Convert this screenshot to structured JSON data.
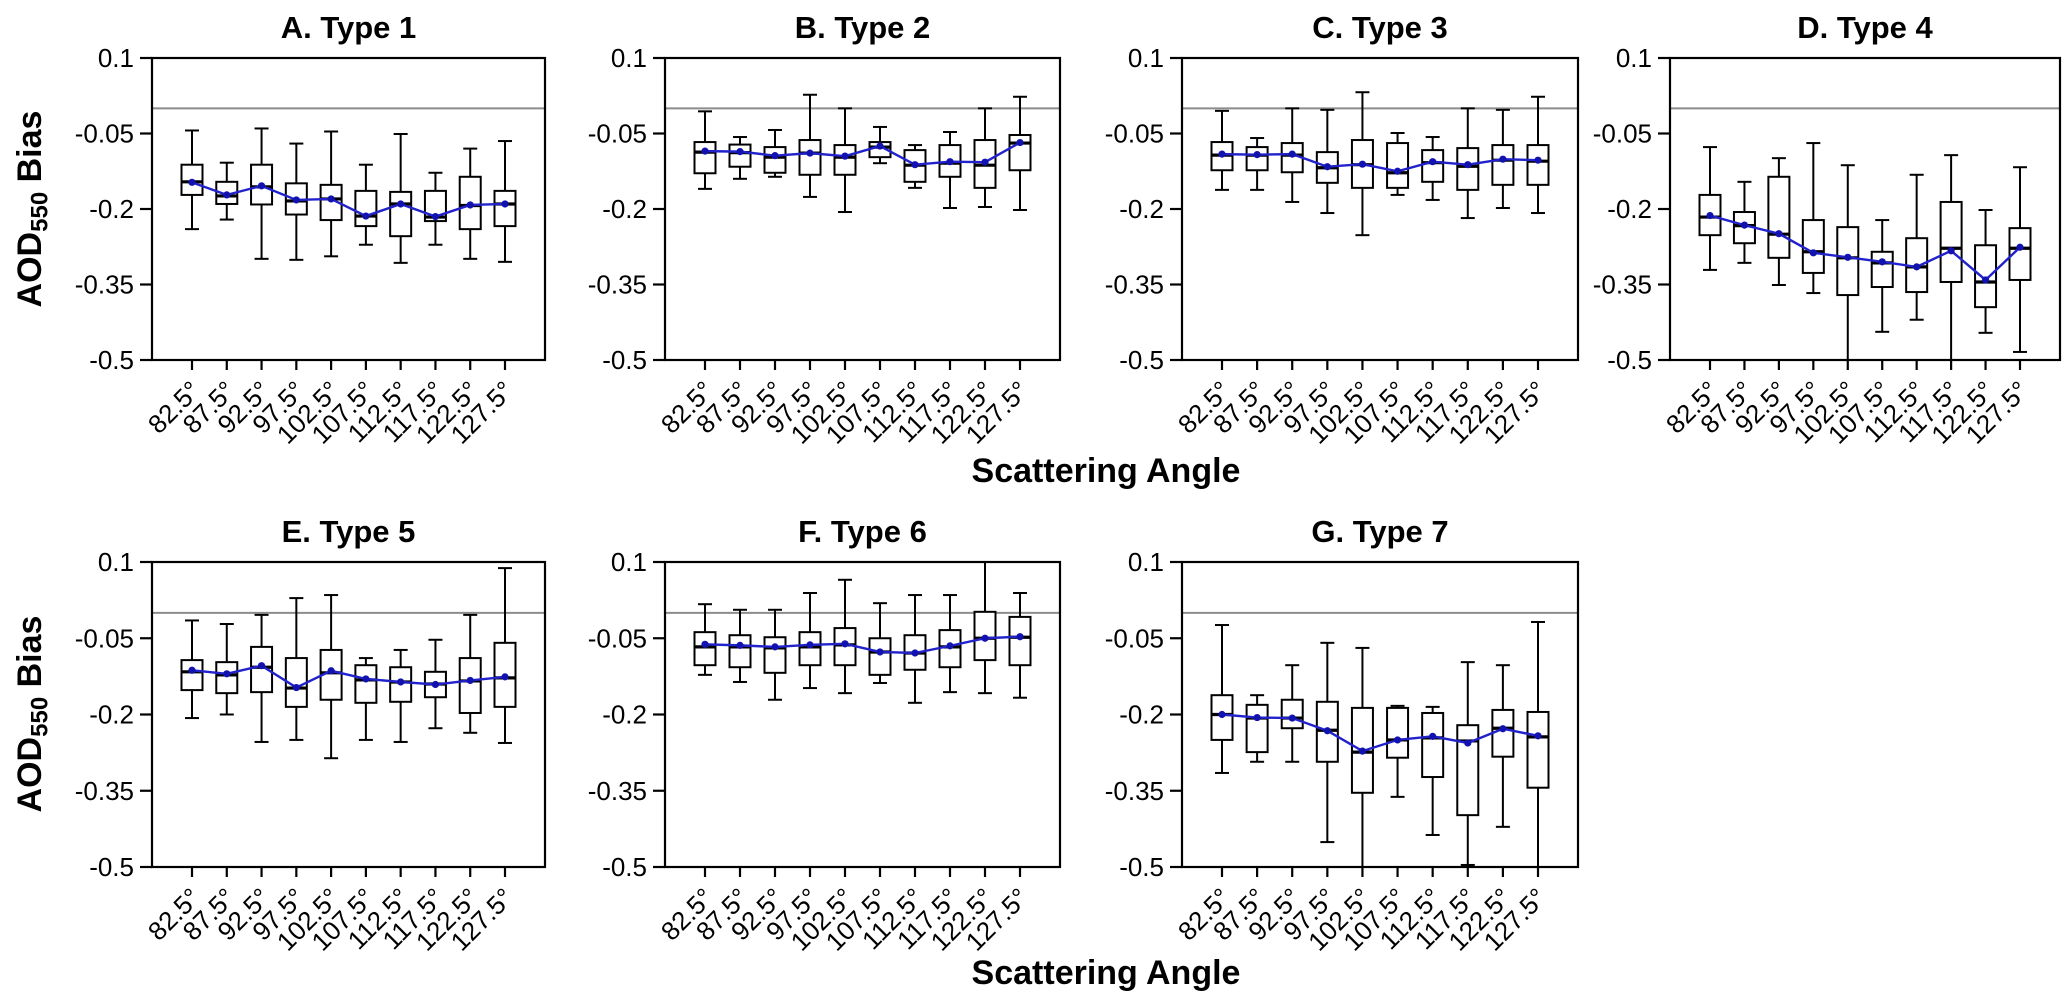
{
  "figure": {
    "xlabel": "Scattering Angle",
    "ylabel_prefix": "AOD",
    "ylabel_sub": "550",
    "ylabel_suffix": " Bias",
    "colors": {
      "mean_line": "#2222cc",
      "mean_dot": "#1212b0",
      "ref_line": "#8c8c8c",
      "box_stroke": "#000000",
      "background": "#ffffff"
    }
  },
  "chart_data": [
    {
      "id": "A",
      "title": "A. Type 1",
      "row": 0,
      "col": 0,
      "type": "box",
      "xlabel": "Scattering Angle",
      "ylabel": "AOD550 Bias",
      "categories": [
        "82.5°",
        "87.5°",
        "92.5°",
        "97.5°",
        "102.5°",
        "107.5°",
        "112.5°",
        "117.5°",
        "122.5°",
        "127.5°"
      ],
      "ylim": [
        -0.5,
        0.1
      ],
      "yticks": [
        0.1,
        -0.05,
        -0.2,
        -0.35,
        -0.5
      ],
      "ytick_labels": [
        "0.1",
        "-0.05",
        "-0.2",
        "-0.35",
        "-0.5"
      ],
      "ref_line": 0,
      "box_format": "[whisker_low, q1, median, q3, whisker_high]",
      "boxes": [
        [
          -0.24,
          -0.172,
          -0.146,
          -0.112,
          -0.044
        ],
        [
          -0.221,
          -0.19,
          -0.174,
          -0.146,
          -0.108
        ],
        [
          -0.299,
          -0.191,
          -0.156,
          -0.112,
          -0.04
        ],
        [
          -0.301,
          -0.211,
          -0.184,
          -0.149,
          -0.07
        ],
        [
          -0.294,
          -0.222,
          -0.18,
          -0.152,
          -0.046
        ],
        [
          -0.271,
          -0.234,
          -0.214,
          -0.164,
          -0.112
        ],
        [
          -0.307,
          -0.254,
          -0.19,
          -0.166,
          -0.051
        ],
        [
          -0.271,
          -0.224,
          -0.216,
          -0.164,
          -0.128
        ],
        [
          -0.299,
          -0.24,
          -0.193,
          -0.136,
          -0.08
        ],
        [
          -0.305,
          -0.234,
          -0.19,
          -0.164,
          -0.065
        ]
      ],
      "means": [
        -0.147,
        -0.172,
        -0.154,
        -0.182,
        -0.18,
        -0.214,
        -0.19,
        -0.215,
        -0.192,
        -0.19
      ]
    },
    {
      "id": "B",
      "title": "B. Type 2",
      "row": 0,
      "col": 1,
      "type": "box",
      "xlabel": "Scattering Angle",
      "ylabel": "AOD550 Bias",
      "categories": [
        "82.5°",
        "87.5°",
        "92.5°",
        "97.5°",
        "102.5°",
        "107.5°",
        "112.5°",
        "117.5°",
        "122.5°",
        "127.5°"
      ],
      "ylim": [
        -0.5,
        0.1
      ],
      "yticks": [
        0.1,
        -0.05,
        -0.2,
        -0.35,
        -0.5
      ],
      "ytick_labels": [
        "0.1",
        "-0.05",
        "-0.2",
        "-0.35",
        "-0.5"
      ],
      "ref_line": 0,
      "box_format": "[whisker_low, q1, median, q3, whisker_high]",
      "boxes": [
        [
          -0.16,
          -0.129,
          -0.087,
          -0.067,
          -0.006
        ],
        [
          -0.14,
          -0.116,
          -0.088,
          -0.072,
          -0.057
        ],
        [
          -0.136,
          -0.128,
          -0.097,
          -0.077,
          -0.043
        ],
        [
          -0.176,
          -0.132,
          -0.089,
          -0.063,
          0.027
        ],
        [
          -0.206,
          -0.132,
          -0.097,
          -0.073,
          0.0
        ],
        [
          -0.109,
          -0.097,
          -0.077,
          -0.067,
          -0.037
        ],
        [
          -0.158,
          -0.146,
          -0.113,
          -0.083,
          -0.073
        ],
        [
          -0.198,
          -0.136,
          -0.109,
          -0.073,
          -0.047
        ],
        [
          -0.196,
          -0.158,
          -0.113,
          -0.063,
          0.0
        ],
        [
          -0.202,
          -0.123,
          -0.069,
          -0.053,
          0.023
        ]
      ],
      "means": [
        -0.085,
        -0.086,
        -0.094,
        -0.089,
        -0.095,
        -0.075,
        -0.112,
        -0.106,
        -0.107,
        -0.068
      ]
    },
    {
      "id": "C",
      "title": "C. Type 3",
      "row": 0,
      "col": 2,
      "type": "box",
      "xlabel": "Scattering Angle",
      "ylabel": "AOD550 Bias",
      "categories": [
        "82.5°",
        "87.5°",
        "92.5°",
        "97.5°",
        "102.5°",
        "107.5°",
        "112.5°",
        "117.5°",
        "122.5°",
        "127.5°"
      ],
      "ylim": [
        -0.5,
        0.1
      ],
      "yticks": [
        0.1,
        -0.05,
        -0.2,
        -0.35,
        -0.5
      ],
      "ytick_labels": [
        "0.1",
        "-0.05",
        "-0.2",
        "-0.35",
        "-0.5"
      ],
      "ref_line": 0,
      "box_format": "[whisker_low, q1, median, q3, whisker_high]",
      "boxes": [
        [
          -0.162,
          -0.123,
          -0.093,
          -0.067,
          -0.005
        ],
        [
          -0.162,
          -0.123,
          -0.093,
          -0.077,
          -0.059
        ],
        [
          -0.186,
          -0.127,
          -0.093,
          -0.069,
          0.0
        ],
        [
          -0.208,
          -0.148,
          -0.118,
          -0.087,
          -0.003
        ],
        [
          -0.252,
          -0.158,
          -0.112,
          -0.063,
          0.032
        ],
        [
          -0.172,
          -0.158,
          -0.128,
          -0.069,
          -0.049
        ],
        [
          -0.182,
          -0.146,
          -0.108,
          -0.083,
          -0.057
        ],
        [
          -0.218,
          -0.162,
          -0.115,
          -0.079,
          0.0
        ],
        [
          -0.198,
          -0.152,
          -0.103,
          -0.073,
          -0.003
        ],
        [
          -0.208,
          -0.152,
          -0.105,
          -0.073,
          0.023
        ]
      ],
      "means": [
        -0.091,
        -0.092,
        -0.091,
        -0.116,
        -0.111,
        -0.125,
        -0.106,
        -0.112,
        -0.101,
        -0.103
      ]
    },
    {
      "id": "D",
      "title": "D. Type 4",
      "row": 0,
      "col": 3,
      "type": "box",
      "xlabel": "Scattering Angle",
      "ylabel": "AOD550 Bias",
      "categories": [
        "82.5°",
        "87.5°",
        "92.5°",
        "97.5°",
        "102.5°",
        "107.5°",
        "112.5°",
        "117.5°",
        "122.5°",
        "127.5°"
      ],
      "ylim": [
        -0.5,
        0.1
      ],
      "yticks": [
        0.1,
        -0.05,
        -0.2,
        -0.35,
        -0.5
      ],
      "ytick_labels": [
        "0.1",
        "-0.05",
        "-0.2",
        "-0.35",
        "-0.5"
      ],
      "ref_line": 0,
      "box_format": "[whisker_low, q1, median, q3, whisker_high]",
      "boxes": [
        [
          -0.321,
          -0.252,
          -0.216,
          -0.172,
          -0.077
        ],
        [
          -0.307,
          -0.268,
          -0.233,
          -0.206,
          -0.146
        ],
        [
          -0.351,
          -0.297,
          -0.25,
          -0.136,
          -0.099
        ],
        [
          -0.367,
          -0.327,
          -0.285,
          -0.222,
          -0.069
        ],
        [
          -0.52,
          -0.371,
          -0.297,
          -0.236,
          -0.113
        ],
        [
          -0.444,
          -0.355,
          -0.307,
          -0.285,
          -0.222
        ],
        [
          -0.42,
          -0.365,
          -0.315,
          -0.258,
          -0.132
        ],
        [
          -0.52,
          -0.345,
          -0.278,
          -0.186,
          -0.093
        ],
        [
          -0.446,
          -0.395,
          -0.345,
          -0.272,
          -0.202
        ],
        [
          -0.484,
          -0.341,
          -0.278,
          -0.238,
          -0.117
        ]
      ],
      "means": [
        -0.213,
        -0.232,
        -0.249,
        -0.287,
        -0.296,
        -0.305,
        -0.315,
        -0.283,
        -0.341,
        -0.276
      ]
    },
    {
      "id": "E",
      "title": "E. Type 5",
      "row": 1,
      "col": 0,
      "type": "box",
      "xlabel": "Scattering Angle",
      "ylabel": "AOD550 Bias",
      "categories": [
        "82.5°",
        "87.5°",
        "92.5°",
        "97.5°",
        "102.5°",
        "107.5°",
        "112.5°",
        "117.5°",
        "122.5°",
        "127.5°"
      ],
      "ylim": [
        -0.5,
        0.1
      ],
      "yticks": [
        0.1,
        -0.05,
        -0.2,
        -0.35,
        -0.5
      ],
      "ytick_labels": [
        "0.1",
        "-0.05",
        "-0.2",
        "-0.35",
        "-0.5"
      ],
      "ref_line": 0,
      "box_format": "[whisker_low, q1, median, q3, whisker_high]",
      "boxes": [
        [
          -0.207,
          -0.152,
          -0.116,
          -0.093,
          -0.015
        ],
        [
          -0.2,
          -0.158,
          -0.122,
          -0.097,
          -0.022
        ],
        [
          -0.254,
          -0.156,
          -0.107,
          -0.067,
          -0.004
        ],
        [
          -0.25,
          -0.185,
          -0.148,
          -0.089,
          0.029
        ],
        [
          -0.286,
          -0.171,
          -0.118,
          -0.073,
          0.035
        ],
        [
          -0.25,
          -0.177,
          -0.132,
          -0.103,
          -0.089
        ],
        [
          -0.254,
          -0.175,
          -0.136,
          -0.107,
          -0.073
        ],
        [
          -0.227,
          -0.166,
          -0.14,
          -0.116,
          -0.053
        ],
        [
          -0.236,
          -0.197,
          -0.134,
          -0.089,
          -0.004
        ],
        [
          -0.256,
          -0.185,
          -0.128,
          -0.059,
          0.088
        ]
      ],
      "means": [
        -0.113,
        -0.12,
        -0.104,
        -0.147,
        -0.114,
        -0.13,
        -0.136,
        -0.141,
        -0.133,
        -0.126
      ]
    },
    {
      "id": "F",
      "title": "F. Type 6",
      "row": 1,
      "col": 1,
      "type": "box",
      "xlabel": "Scattering Angle",
      "ylabel": "AOD550 Bias",
      "categories": [
        "82.5°",
        "87.5°",
        "92.5°",
        "97.5°",
        "102.5°",
        "107.5°",
        "112.5°",
        "117.5°",
        "122.5°",
        "127.5°"
      ],
      "ylim": [
        -0.5,
        0.1
      ],
      "yticks": [
        0.1,
        -0.05,
        -0.2,
        -0.35,
        -0.5
      ],
      "ytick_labels": [
        "0.1",
        "-0.05",
        "-0.2",
        "-0.35",
        "-0.5"
      ],
      "ref_line": 0,
      "box_format": "[whisker_low, q1, median, q3, whisker_high]",
      "boxes": [
        [
          -0.122,
          -0.103,
          -0.067,
          -0.038,
          0.017
        ],
        [
          -0.136,
          -0.107,
          -0.067,
          -0.044,
          0.006
        ],
        [
          -0.171,
          -0.118,
          -0.069,
          -0.048,
          0.006
        ],
        [
          -0.148,
          -0.103,
          -0.067,
          -0.038,
          0.039
        ],
        [
          -0.158,
          -0.103,
          -0.063,
          -0.03,
          0.065
        ],
        [
          -0.138,
          -0.122,
          -0.077,
          -0.05,
          0.019
        ],
        [
          -0.177,
          -0.112,
          -0.079,
          -0.044,
          0.035
        ],
        [
          -0.156,
          -0.107,
          -0.067,
          -0.034,
          0.035
        ],
        [
          -0.158,
          -0.093,
          -0.05,
          0.002,
          0.1
        ],
        [
          -0.167,
          -0.103,
          -0.048,
          -0.008,
          0.039
        ]
      ],
      "means": [
        -0.062,
        -0.064,
        -0.067,
        -0.063,
        -0.061,
        -0.077,
        -0.079,
        -0.065,
        -0.05,
        -0.047
      ]
    },
    {
      "id": "G",
      "title": "G. Type 7",
      "row": 1,
      "col": 2,
      "type": "box",
      "xlabel": "Scattering Angle",
      "ylabel": "AOD550 Bias",
      "categories": [
        "82.5°",
        "87.5°",
        "92.5°",
        "97.5°",
        "102.5°",
        "107.5°",
        "112.5°",
        "117.5°",
        "122.5°",
        "127.5°"
      ],
      "ylim": [
        -0.5,
        0.1
      ],
      "yticks": [
        0.1,
        -0.05,
        -0.2,
        -0.35,
        -0.5
      ],
      "ytick_labels": [
        "0.1",
        "-0.05",
        "-0.2",
        "-0.35",
        "-0.5"
      ],
      "ref_line": 0,
      "box_format": "[whisker_low, q1, median, q3, whisker_high]",
      "boxes": [
        [
          -0.315,
          -0.25,
          -0.2,
          -0.162,
          -0.024
        ],
        [
          -0.293,
          -0.274,
          -0.207,
          -0.181,
          -0.162
        ],
        [
          -0.293,
          -0.227,
          -0.207,
          -0.171,
          -0.103
        ],
        [
          -0.451,
          -0.293,
          -0.231,
          -0.175,
          -0.059
        ],
        [
          -0.52,
          -0.354,
          -0.274,
          -0.187,
          -0.069
        ],
        [
          -0.362,
          -0.285,
          -0.25,
          -0.187,
          -0.183
        ],
        [
          -0.437,
          -0.323,
          -0.246,
          -0.197,
          -0.185
        ],
        [
          -0.496,
          -0.398,
          -0.252,
          -0.221,
          -0.097
        ],
        [
          -0.421,
          -0.283,
          -0.227,
          -0.191,
          -0.103
        ],
        [
          -0.52,
          -0.344,
          -0.244,
          -0.195,
          -0.018
        ]
      ],
      "means": [
        -0.2,
        -0.206,
        -0.207,
        -0.232,
        -0.272,
        -0.25,
        -0.243,
        -0.256,
        -0.228,
        -0.242
      ]
    }
  ]
}
